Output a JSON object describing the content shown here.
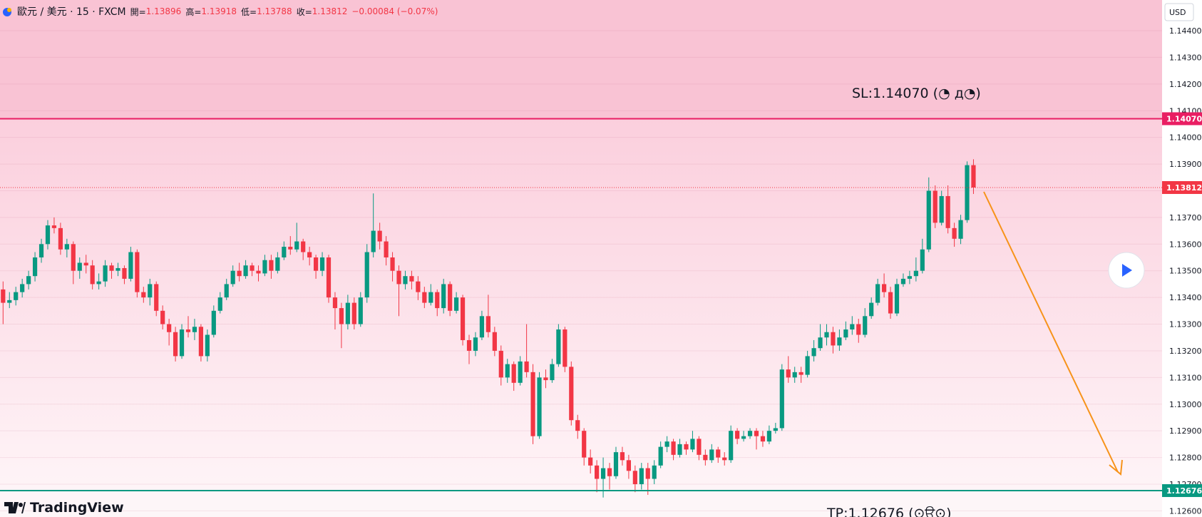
{
  "header": {
    "symbol": "歐元 / 美元 · 15 · FXCM",
    "fields": [
      {
        "label": "開=",
        "value": "1.13896"
      },
      {
        "label": "高=",
        "value": "1.13918"
      },
      {
        "label": "低=",
        "value": "1.13788"
      },
      {
        "label": "收=",
        "value": "1.13812"
      }
    ],
    "change": "−0.00084 (−0.07%)"
  },
  "logo": "TradingView",
  "chart_data": {
    "type": "candlestick",
    "currency": "USD",
    "up_color": "#089981",
    "down_color": "#f23645",
    "grid": true,
    "ylim": [
      1.12577,
      1.14515
    ],
    "yticks": [
      {
        "value": 1.126,
        "label": "1.12600"
      },
      {
        "value": 1.127,
        "label": "1.12700"
      },
      {
        "value": 1.128,
        "label": "1.12800"
      },
      {
        "value": 1.129,
        "label": "1.12900"
      },
      {
        "value": 1.13,
        "label": "1.13000"
      },
      {
        "value": 1.131,
        "label": "1.13100"
      },
      {
        "value": 1.132,
        "label": "1.13200"
      },
      {
        "value": 1.133,
        "label": "1.13300"
      },
      {
        "value": 1.134,
        "label": "1.13400"
      },
      {
        "value": 1.135,
        "label": "1.13500"
      },
      {
        "value": 1.136,
        "label": "1.13600"
      },
      {
        "value": 1.137,
        "label": "1.13700"
      },
      {
        "value": 1.138,
        "label": "1.13800"
      },
      {
        "value": 1.139,
        "label": "1.13900"
      },
      {
        "value": 1.14,
        "label": "1.14000"
      },
      {
        "value": 1.141,
        "label": "1.14100"
      },
      {
        "value": 1.142,
        "label": "1.14200"
      },
      {
        "value": 1.143,
        "label": "1.14300"
      },
      {
        "value": 1.144,
        "label": "1.14400"
      }
    ],
    "price_lines": [
      {
        "value": 1.1407,
        "label": "1.14070",
        "color": "#e91e63",
        "style": "solid"
      },
      {
        "value": 1.13812,
        "label": "1.13812",
        "color": "#f23645",
        "style": "dotted"
      },
      {
        "value": 1.12676,
        "label": "1.12676",
        "color": "#089981",
        "style": "solid"
      }
    ],
    "annotations": [
      "SL:1.14070 (◔ д◔)",
      "TP:1.12676 (⊙ਊ⊙)"
    ],
    "ohlc": [
      [
        1.1343,
        1.1346,
        1.133,
        1.1338
      ],
      [
        1.1338,
        1.1342,
        1.1336,
        1.1339
      ],
      [
        1.1339,
        1.1344,
        1.1337,
        1.1342
      ],
      [
        1.1342,
        1.1347,
        1.134,
        1.1345
      ],
      [
        1.1345,
        1.135,
        1.1343,
        1.1348
      ],
      [
        1.1348,
        1.1357,
        1.1346,
        1.1355
      ],
      [
        1.1355,
        1.1362,
        1.1353,
        1.136
      ],
      [
        1.136,
        1.1369,
        1.1358,
        1.1367
      ],
      [
        1.1367,
        1.137,
        1.1364,
        1.1366
      ],
      [
        1.1366,
        1.1368,
        1.1356,
        1.1358
      ],
      [
        1.1358,
        1.1362,
        1.1355,
        1.136
      ],
      [
        1.136,
        1.1361,
        1.1345,
        1.135
      ],
      [
        1.135,
        1.1355,
        1.1347,
        1.1353
      ],
      [
        1.1353,
        1.1356,
        1.1349,
        1.1352
      ],
      [
        1.1352,
        1.1354,
        1.1343,
        1.1345
      ],
      [
        1.1345,
        1.1349,
        1.1343,
        1.1346
      ],
      [
        1.1346,
        1.1354,
        1.1344,
        1.1352
      ],
      [
        1.1352,
        1.1353,
        1.1347,
        1.135
      ],
      [
        1.135,
        1.1353,
        1.1348,
        1.1351
      ],
      [
        1.1351,
        1.1352,
        1.1345,
        1.1347
      ],
      [
        1.1347,
        1.1359,
        1.1346,
        1.1357
      ],
      [
        1.1357,
        1.1358,
        1.134,
        1.1342
      ],
      [
        1.1342,
        1.1344,
        1.1338,
        1.134
      ],
      [
        1.134,
        1.1347,
        1.1337,
        1.1345
      ],
      [
        1.1345,
        1.1346,
        1.1333,
        1.1335
      ],
      [
        1.1335,
        1.1337,
        1.1328,
        1.133
      ],
      [
        1.133,
        1.1332,
        1.1322,
        1.1327
      ],
      [
        1.1327,
        1.1329,
        1.1316,
        1.1318
      ],
      [
        1.1318,
        1.133,
        1.1317,
        1.1328
      ],
      [
        1.1328,
        1.1333,
        1.1325,
        1.1327
      ],
      [
        1.1327,
        1.1332,
        1.1324,
        1.1329
      ],
      [
        1.1329,
        1.133,
        1.1316,
        1.1318
      ],
      [
        1.1318,
        1.1328,
        1.1316,
        1.1326
      ],
      [
        1.1326,
        1.1337,
        1.1325,
        1.1335
      ],
      [
        1.1335,
        1.1342,
        1.1334,
        1.134
      ],
      [
        1.134,
        1.1347,
        1.1339,
        1.1345
      ],
      [
        1.1345,
        1.1352,
        1.1344,
        1.135
      ],
      [
        1.135,
        1.1353,
        1.1346,
        1.1348
      ],
      [
        1.1348,
        1.1354,
        1.1347,
        1.1352
      ],
      [
        1.1352,
        1.1353,
        1.1348,
        1.135
      ],
      [
        1.135,
        1.1352,
        1.1346,
        1.1349
      ],
      [
        1.1349,
        1.1356,
        1.1348,
        1.1354
      ],
      [
        1.1354,
        1.1356,
        1.1347,
        1.135
      ],
      [
        1.135,
        1.1357,
        1.1349,
        1.1355
      ],
      [
        1.1355,
        1.1361,
        1.1354,
        1.1359
      ],
      [
        1.1359,
        1.1363,
        1.1356,
        1.1358
      ],
      [
        1.1358,
        1.1368,
        1.1357,
        1.1361
      ],
      [
        1.1361,
        1.1362,
        1.1354,
        1.1357
      ],
      [
        1.1357,
        1.1359,
        1.1352,
        1.1355
      ],
      [
        1.1355,
        1.1356,
        1.1347,
        1.135
      ],
      [
        1.135,
        1.1357,
        1.1348,
        1.1355
      ],
      [
        1.1355,
        1.1356,
        1.1338,
        1.134
      ],
      [
        1.134,
        1.1342,
        1.1328,
        1.1336
      ],
      [
        1.1336,
        1.1338,
        1.1321,
        1.133
      ],
      [
        1.133,
        1.1341,
        1.1328,
        1.1338
      ],
      [
        1.1338,
        1.134,
        1.1328,
        1.133
      ],
      [
        1.133,
        1.1342,
        1.1329,
        1.134
      ],
      [
        1.134,
        1.136,
        1.1338,
        1.1357
      ],
      [
        1.1357,
        1.1379,
        1.1355,
        1.1365
      ],
      [
        1.1365,
        1.1368,
        1.1358,
        1.1361
      ],
      [
        1.1361,
        1.1363,
        1.1352,
        1.1355
      ],
      [
        1.1355,
        1.1357,
        1.1346,
        1.135
      ],
      [
        1.135,
        1.1352,
        1.1333,
        1.1345
      ],
      [
        1.1345,
        1.135,
        1.1343,
        1.1348
      ],
      [
        1.1348,
        1.135,
        1.1343,
        1.1346
      ],
      [
        1.1346,
        1.1348,
        1.1339,
        1.1342
      ],
      [
        1.1342,
        1.1344,
        1.1336,
        1.1338
      ],
      [
        1.1338,
        1.1345,
        1.1337,
        1.1342
      ],
      [
        1.1342,
        1.1343,
        1.1333,
        1.1336
      ],
      [
        1.1336,
        1.1347,
        1.1334,
        1.1345
      ],
      [
        1.1345,
        1.1346,
        1.1333,
        1.1335
      ],
      [
        1.1335,
        1.1342,
        1.1334,
        1.134
      ],
      [
        1.134,
        1.1341,
        1.1322,
        1.1324
      ],
      [
        1.1324,
        1.1326,
        1.1315,
        1.132
      ],
      [
        1.132,
        1.1327,
        1.1318,
        1.1325
      ],
      [
        1.1325,
        1.1335,
        1.1324,
        1.1333
      ],
      [
        1.1333,
        1.1341,
        1.1325,
        1.1327
      ],
      [
        1.1327,
        1.1329,
        1.1318,
        1.132
      ],
      [
        1.132,
        1.1322,
        1.1307,
        1.131
      ],
      [
        1.131,
        1.1317,
        1.1308,
        1.1315
      ],
      [
        1.1315,
        1.1316,
        1.1305,
        1.1308
      ],
      [
        1.1308,
        1.1318,
        1.1307,
        1.1316
      ],
      [
        1.1316,
        1.133,
        1.131,
        1.1312
      ],
      [
        1.1312,
        1.1315,
        1.1285,
        1.1288
      ],
      [
        1.1288,
        1.1312,
        1.1287,
        1.131
      ],
      [
        1.131,
        1.1313,
        1.1306,
        1.1309
      ],
      [
        1.1309,
        1.1317,
        1.1308,
        1.1315
      ],
      [
        1.1315,
        1.133,
        1.1314,
        1.1328
      ],
      [
        1.1328,
        1.1329,
        1.1312,
        1.1314
      ],
      [
        1.1314,
        1.1316,
        1.1292,
        1.1294
      ],
      [
        1.1294,
        1.1296,
        1.1287,
        1.129
      ],
      [
        1.129,
        1.1291,
        1.1277,
        1.128
      ],
      [
        1.128,
        1.1283,
        1.1274,
        1.1277
      ],
      [
        1.1277,
        1.1279,
        1.1267,
        1.1272
      ],
      [
        1.1272,
        1.128,
        1.1265,
        1.1276
      ],
      [
        1.1276,
        1.1278,
        1.1268,
        1.1273
      ],
      [
        1.1273,
        1.1284,
        1.1272,
        1.1282
      ],
      [
        1.1282,
        1.1284,
        1.1277,
        1.1279
      ],
      [
        1.1279,
        1.1281,
        1.1272,
        1.1275
      ],
      [
        1.1275,
        1.1277,
        1.1267,
        1.127
      ],
      [
        1.127,
        1.1278,
        1.1268,
        1.1276
      ],
      [
        1.1276,
        1.1278,
        1.1266,
        1.1272
      ],
      [
        1.1272,
        1.1279,
        1.127,
        1.1277
      ],
      [
        1.1277,
        1.1286,
        1.1276,
        1.1284
      ],
      [
        1.1284,
        1.1288,
        1.1282,
        1.1286
      ],
      [
        1.1286,
        1.1287,
        1.1279,
        1.1281
      ],
      [
        1.1281,
        1.1287,
        1.128,
        1.1285
      ],
      [
        1.1285,
        1.1286,
        1.1281,
        1.1283
      ],
      [
        1.1283,
        1.129,
        1.1282,
        1.1287
      ],
      [
        1.1287,
        1.1288,
        1.1279,
        1.1281
      ],
      [
        1.1281,
        1.1283,
        1.1277,
        1.1279
      ],
      [
        1.1279,
        1.1285,
        1.1278,
        1.1283
      ],
      [
        1.1283,
        1.1284,
        1.1278,
        1.128
      ],
      [
        1.128,
        1.1282,
        1.1277,
        1.1279
      ],
      [
        1.1279,
        1.1292,
        1.1278,
        1.129
      ],
      [
        1.129,
        1.1291,
        1.1285,
        1.1287
      ],
      [
        1.1287,
        1.129,
        1.1286,
        1.1288
      ],
      [
        1.1288,
        1.1291,
        1.1287,
        1.129
      ],
      [
        1.129,
        1.1291,
        1.1283,
        1.1288
      ],
      [
        1.1288,
        1.129,
        1.1284,
        1.1286
      ],
      [
        1.1286,
        1.1292,
        1.1285,
        1.129
      ],
      [
        1.129,
        1.1293,
        1.1289,
        1.1291
      ],
      [
        1.1291,
        1.1315,
        1.129,
        1.1313
      ],
      [
        1.1313,
        1.1318,
        1.1308,
        1.131
      ],
      [
        1.131,
        1.1314,
        1.1308,
        1.1312
      ],
      [
        1.1312,
        1.1314,
        1.1308,
        1.1311
      ],
      [
        1.1311,
        1.132,
        1.131,
        1.1318
      ],
      [
        1.1318,
        1.1324,
        1.1316,
        1.1321
      ],
      [
        1.1321,
        1.133,
        1.132,
        1.1325
      ],
      [
        1.1325,
        1.133,
        1.1322,
        1.1327
      ],
      [
        1.1327,
        1.1329,
        1.1319,
        1.1322
      ],
      [
        1.1322,
        1.1328,
        1.132,
        1.1325
      ],
      [
        1.1325,
        1.1331,
        1.1324,
        1.1328
      ],
      [
        1.1328,
        1.1333,
        1.1326,
        1.133
      ],
      [
        1.133,
        1.1332,
        1.1323,
        1.1326
      ],
      [
        1.1326,
        1.1336,
        1.1325,
        1.1333
      ],
      [
        1.1333,
        1.134,
        1.1332,
        1.1338
      ],
      [
        1.1338,
        1.1347,
        1.1337,
        1.1345
      ],
      [
        1.1345,
        1.1349,
        1.134,
        1.1342
      ],
      [
        1.1342,
        1.1344,
        1.1332,
        1.1334
      ],
      [
        1.1334,
        1.1347,
        1.1333,
        1.1345
      ],
      [
        1.1345,
        1.1349,
        1.1344,
        1.1347
      ],
      [
        1.1347,
        1.135,
        1.1345,
        1.1348
      ],
      [
        1.1348,
        1.1355,
        1.1346,
        1.135
      ],
      [
        1.135,
        1.1362,
        1.1349,
        1.1358
      ],
      [
        1.1358,
        1.1385,
        1.1357,
        1.138
      ],
      [
        1.138,
        1.1382,
        1.1366,
        1.1368
      ],
      [
        1.1368,
        1.138,
        1.1367,
        1.1378
      ],
      [
        1.1378,
        1.1382,
        1.1364,
        1.1366
      ],
      [
        1.1366,
        1.1368,
        1.1359,
        1.1362
      ],
      [
        1.1362,
        1.1371,
        1.136,
        1.1369
      ],
      [
        1.1369,
        1.1391,
        1.1368,
        1.13896
      ],
      [
        1.13896,
        1.13918,
        1.13788,
        1.13812
      ]
    ]
  }
}
